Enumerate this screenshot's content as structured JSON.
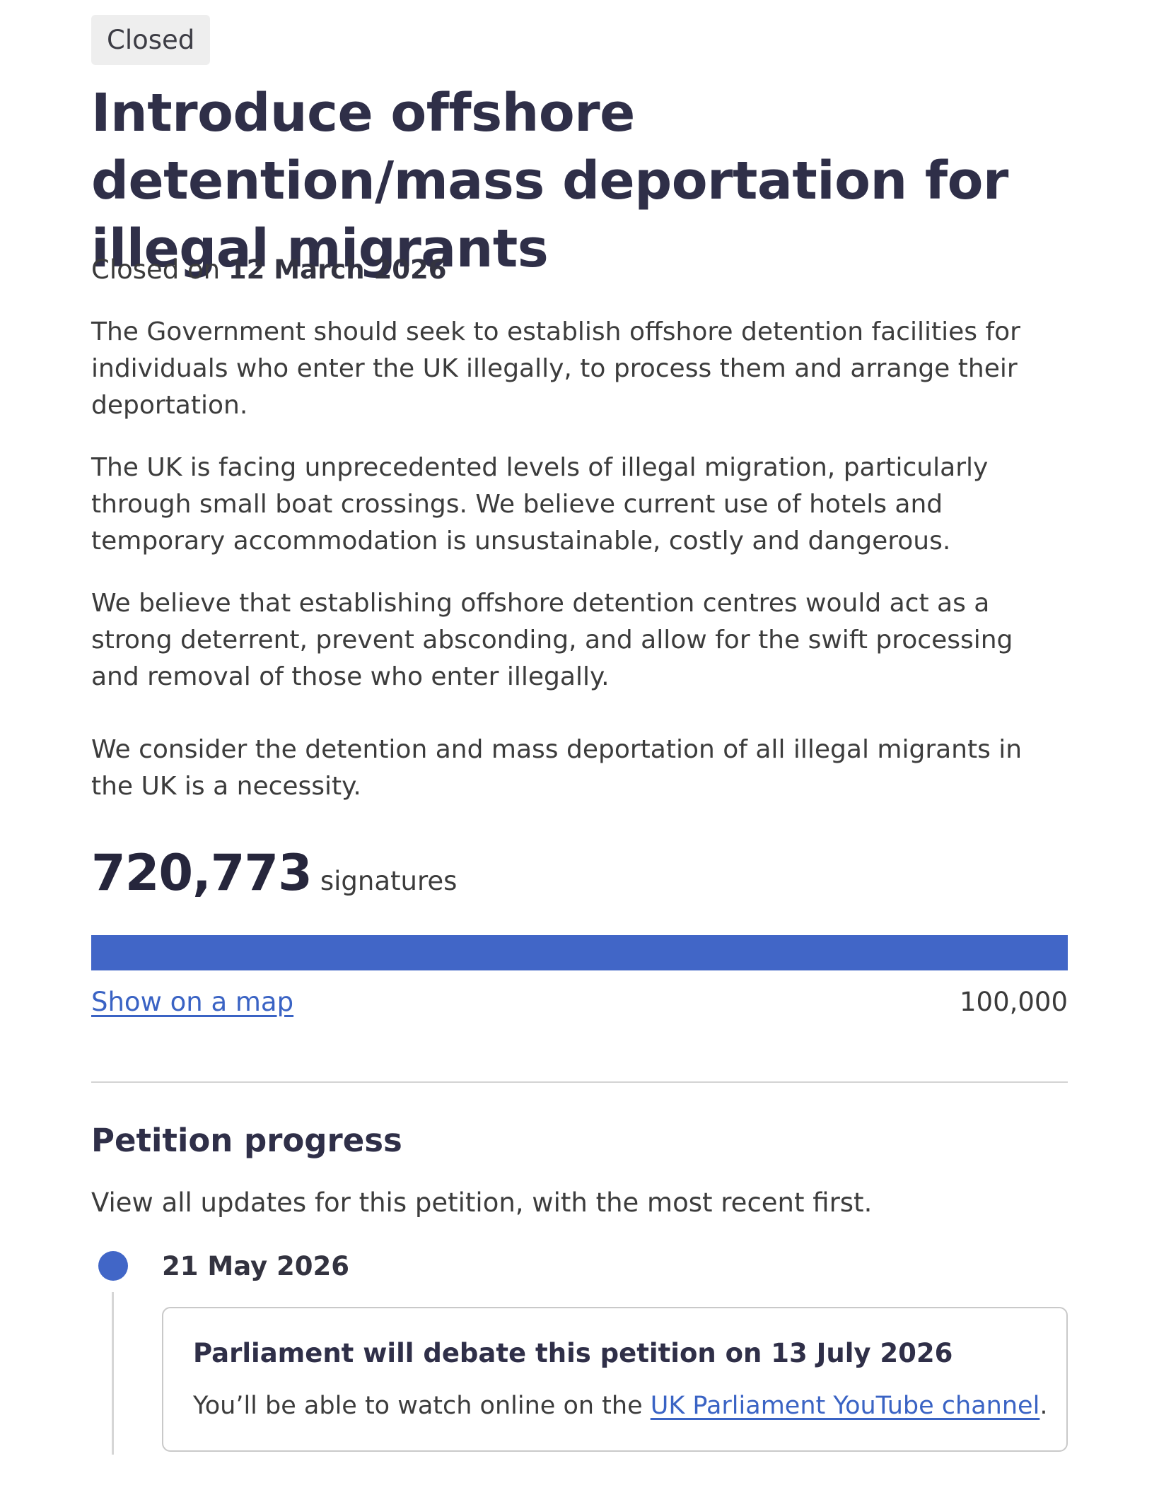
{
  "petition": {
    "status_tag": "Closed",
    "title": "Introduce offshore detention/mass deportation for illegal migrants",
    "closed_prefix": "Closed on",
    "closed_date": "12 March 2026",
    "paragraphs": [
      "The Government should seek to establish offshore detention facilities for individuals who enter the UK illegally, to process them and arrange their deportation.",
      "The UK is facing unprecedented levels of illegal migration, particularly through small boat crossings. We believe current use of hotels and temporary accommodation is unsustainable, costly and dangerous.",
      "We believe that establishing offshore detention centres would act as a strong deterrent, prevent absconding, and allow for the swift processing and removal of those who enter illegally.",
      "We consider the detention and mass deportation of all illegal migrants in the UK is a necessity."
    ]
  },
  "signatures": {
    "count": "720,773",
    "label": "signatures",
    "target": "100,000",
    "progress_fraction": 1.0,
    "map_link": "Show on a map"
  },
  "progress": {
    "heading": "Petition progress",
    "intro": "View all updates for this petition, with the most recent first.",
    "updates": [
      {
        "date": "21 May 2026",
        "title": "Parliament will debate this petition on 13 July 2026",
        "text_before": "You’ll be able to watch online on the ",
        "link_text": "UK Parliament YouTube channel",
        "text_after": "."
      }
    ]
  },
  "colors": {
    "accent": "#4166c7",
    "link": "#3a63c4",
    "heading": "#2f2f48",
    "tag_background": "#eeeeee"
  }
}
